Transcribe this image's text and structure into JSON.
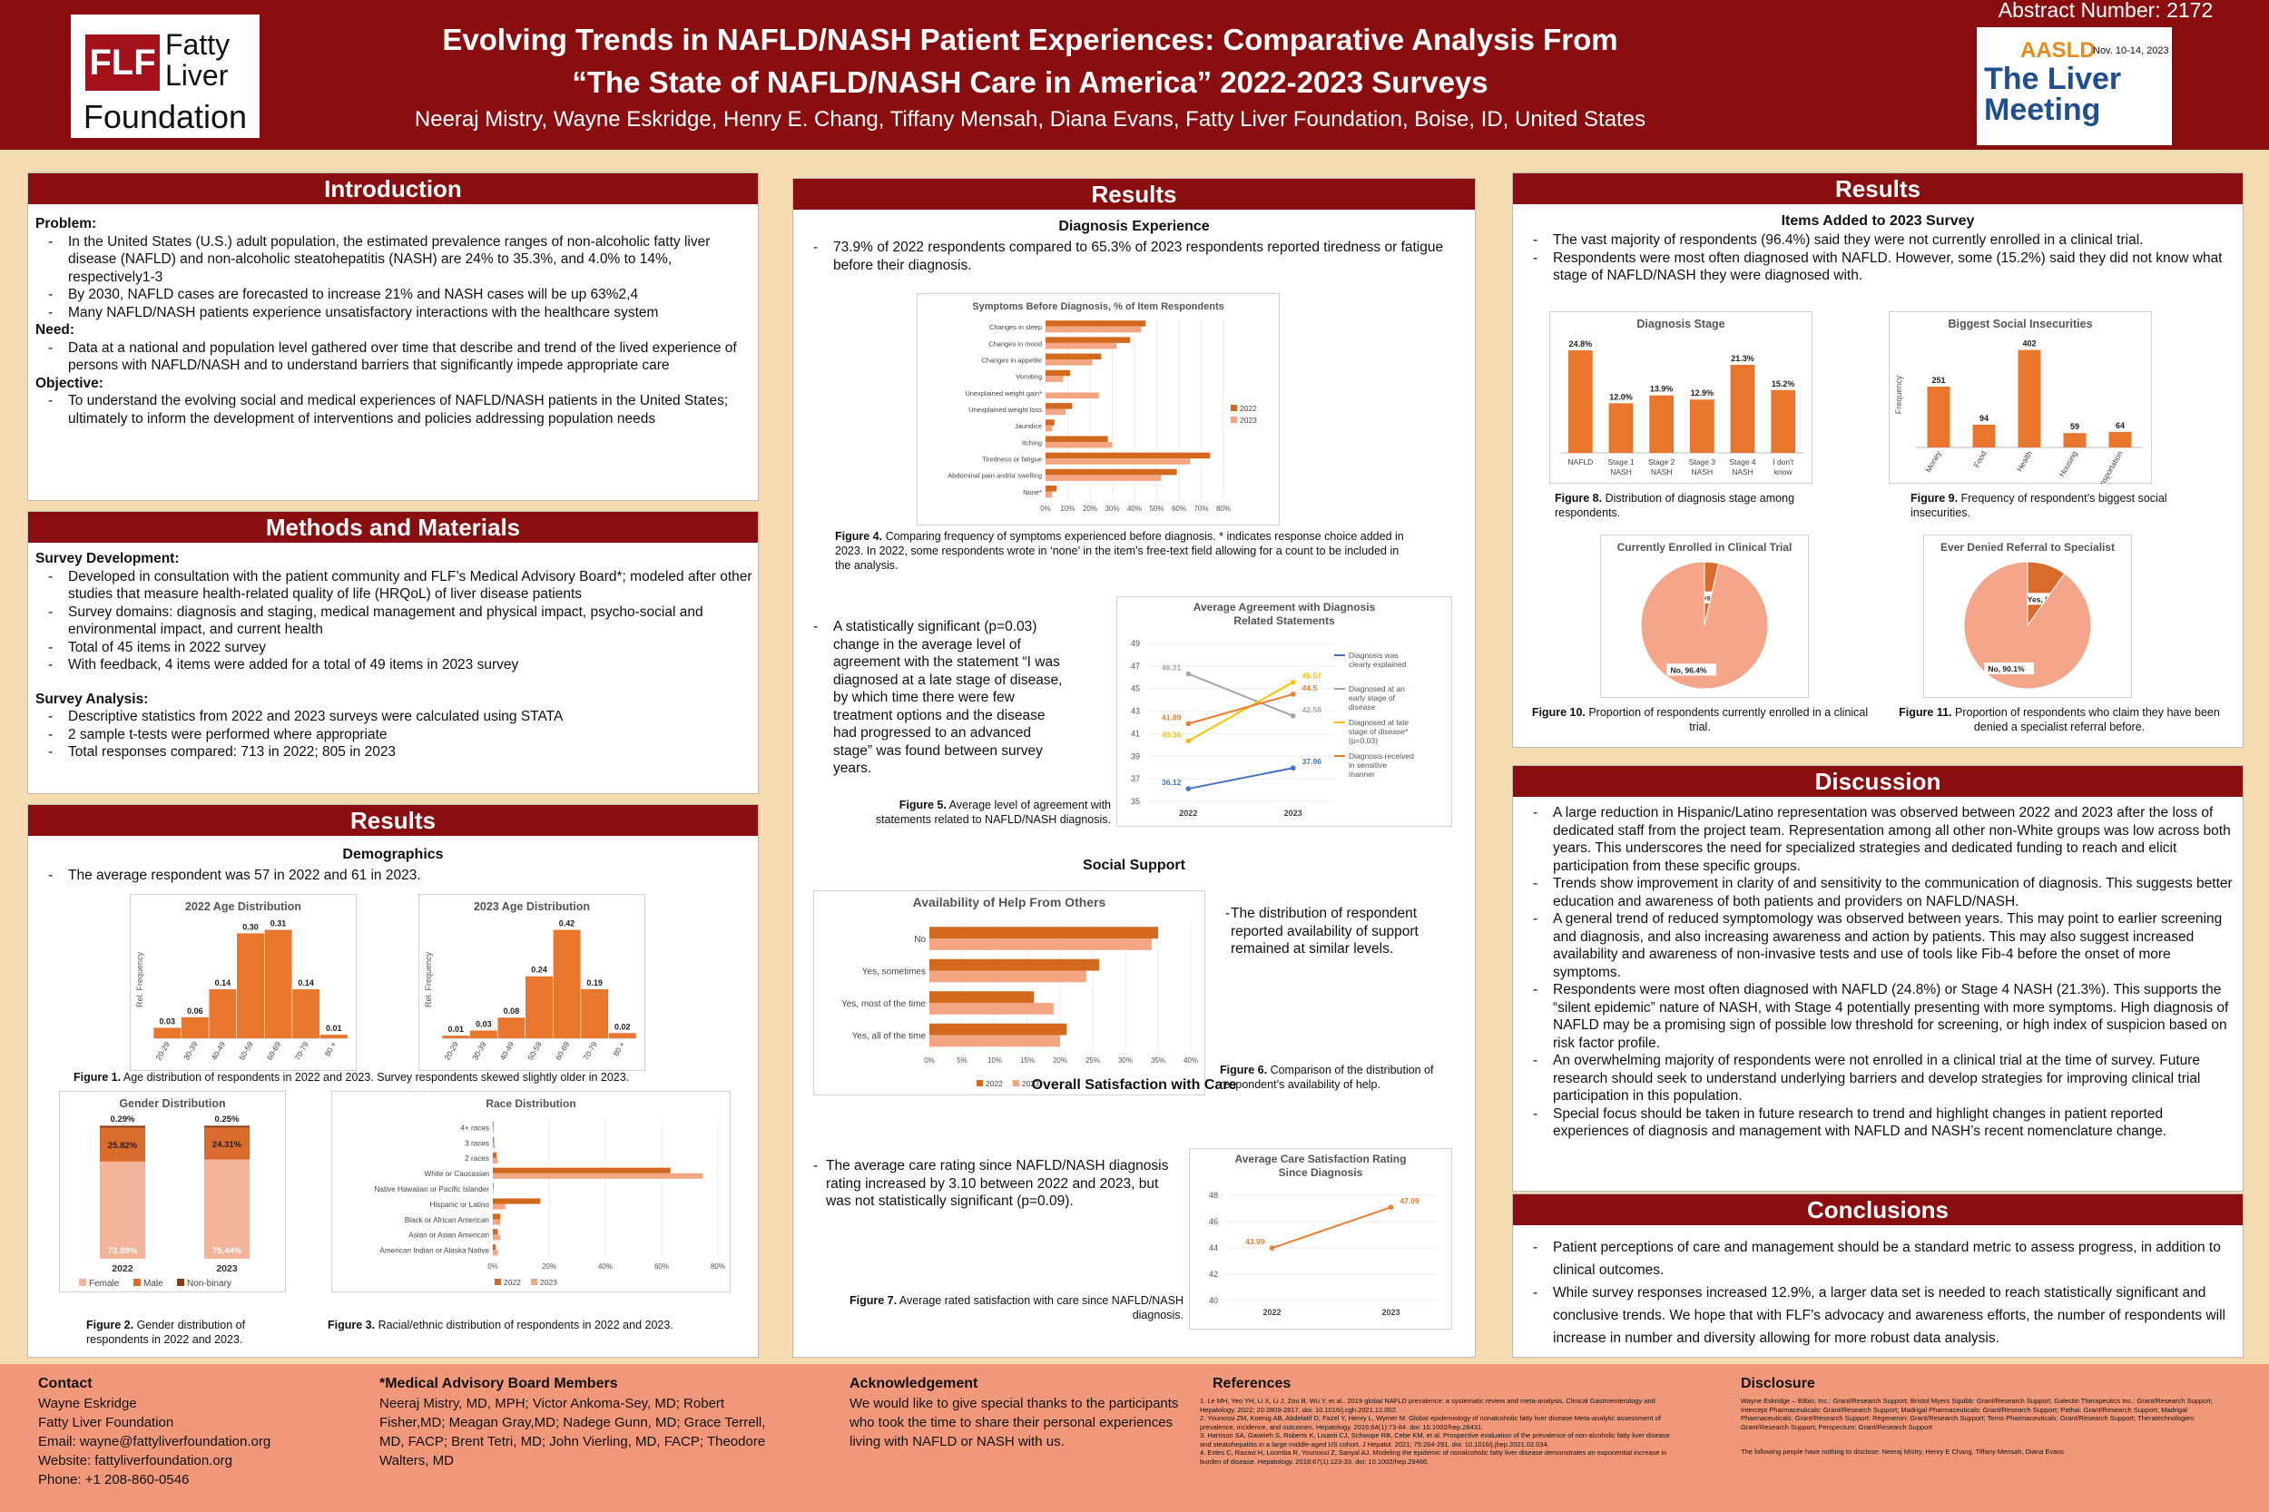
{
  "header": {
    "logo_flf": "FLF",
    "logo_fatty": "Fatty",
    "logo_liver": "Liver",
    "logo_foundation": "Foundation",
    "title_line1": "Evolving Trends in NAFLD/NASH Patient Experiences: Comparative Analysis From",
    "title_line2": "“The State of NAFLD/NASH Care in America” 2022-2023 Surveys",
    "authors": "Neeraj Mistry, Wayne Eskridge, Henry E. Chang, Tiffany Mensah, Diana Evans, Fatty Liver Foundation, Boise, ID, United States",
    "abstract": "Abstract Number: 2172",
    "meeting_org": "AASLD",
    "meeting_dates": "Nov. 10-14, 2023",
    "meeting_name": "The Liver Meeting"
  },
  "intro": {
    "heading": "Introduction",
    "problem_label": "Problem:",
    "problem": [
      "In the United States (U.S.) adult population, the estimated prevalence ranges of non-alcoholic fatty liver disease (NAFLD) and non-alcoholic steatohepatitis (NASH) are 24% to 35.3%, and 4.0% to 14%, respectively1-3",
      "By 2030, NAFLD cases are forecasted to increase 21% and NASH cases will be up 63%2,4",
      "Many NAFLD/NASH patients experience unsatisfactory interactions with the healthcare system"
    ],
    "need_label": "Need:",
    "need": [
      "Data at a national and population level gathered over time that describe and trend of the lived experience of persons with NAFLD/NASH and to understand barriers that significantly impede appropriate care"
    ],
    "objective_label": "Objective:",
    "objective": [
      "To understand the evolving social and medical experiences of NAFLD/NASH patients in the United States; ultimately to inform the development of interventions and policies addressing population needs"
    ]
  },
  "methods": {
    "heading": "Methods and Materials",
    "dev_label": "Survey Development:",
    "dev": [
      "Developed in consultation with the patient community and FLF’s Medical Advisory Board*; modeled after other studies that measure health-related quality of life (HRQoL) of liver disease patients",
      "Survey domains: diagnosis and staging, medical management and physical impact, psycho-social and environmental impact, and current health",
      "Total of 45 items in 2022 survey",
      "With feedback, 4 items were added for a total of 49 items in 2023 survey"
    ],
    "analysis_label": "Survey Analysis:",
    "analysis": [
      "Descriptive statistics from 2022 and 2023 surveys were calculated using STATA",
      "2 sample t-tests were performed where appropriate",
      "Total responses compared: 713 in 2022;  805 in 2023"
    ]
  },
  "results1": {
    "heading": "Results",
    "demographics": "Demographics",
    "demo_text": "The average respondent was 57 in 2022 and  61 in 2023.",
    "fig1_caption_bold": "Figure 1.",
    "fig1_caption": " Age distribution of respondents in 2022 and 2023. Survey respondents skewed slightly older in 2023.",
    "fig2_caption_bold": "Figure 2.",
    "fig2_caption": " Gender distribution of respondents in 2022 and 2023.",
    "fig3_caption_bold": "Figure 3.",
    "fig3_caption": " Racial/ethnic distribution of respondents in 2022 and 2023."
  },
  "results2": {
    "heading": "Results",
    "diag_exp": "Diagnosis Experience",
    "diag_text": "73.9% of 2022 respondents compared to 65.3% of 2023  respondents reported tiredness or fatigue before their diagnosis.",
    "fig4_caption_bold": "Figure 4.",
    "fig4_caption": "  Comparing frequency of symptoms experienced before diagnosis. * indicates response choice added in 2023. In 2022, some respondents wrote in ‘none’ in the item’s free-text field allowing for a count to be included in the analysis.",
    "agree_text": "A statistically significant (p=0.03) change in the average level of agreement with the statement “I was diagnosed at a late stage of disease, by which time there were few treatment options and the disease had progressed to an advanced stage” was found between survey years.",
    "fig5_caption_bold": "Figure 5.",
    "fig5_caption": "  Average level of agreement with statements related to NAFLD/NASH diagnosis.",
    "social": "Social Support",
    "social_text": "The distribution of respondent reported availability of support remained at similar levels.",
    "fig6_caption_bold": "Figure 6.",
    "fig6_caption": "  Comparison of the distribution of respondent’s availability of help.",
    "satisfaction": "Overall Satisfaction with Care",
    "satisfaction_text": "The average care rating since NAFLD/NASH diagnosis rating increased by 3.10 between 2022 and 2023, but was not statistically significant (p=0.09).",
    "fig7_caption_bold": "Figure 7.",
    "fig7_caption": "  Average rated satisfaction with care since NAFLD/NASH diagnosis."
  },
  "results3": {
    "heading": "Results",
    "items_added": "Items Added to 2023 Survey",
    "items": [
      "The vast  majority of respondents (96.4%) said they were not currently enrolled in a clinical trial.",
      "Respondents were most often diagnosed with NAFLD. However, some (15.2%) said they did not know what stage of NAFLD/NASH they were diagnosed with."
    ],
    "fig8_caption_bold": "Figure 8.",
    "fig8_caption": "  Distribution of diagnosis stage among respondents.",
    "fig9_caption_bold": "Figure 9.",
    "fig9_caption": "  Frequency  of respondent’s biggest social insecurities.",
    "fig10_caption_bold": "Figure 10.",
    "fig10_caption": " Proportion of  respondents currently enrolled in  a clinical trial.",
    "fig11_caption_bold": "Figure 11.",
    "fig11_caption": " Proportion of respondents who claim they have been denied a specialist referral before."
  },
  "discussion": {
    "heading": "Discussion",
    "items": [
      "A large reduction in Hispanic/Latino representation was observed between 2022 and 2023 after the loss of dedicated staff from the project team. Representation among all other non-White groups was low across both years. This underscores the need for specialized strategies and dedicated funding to reach and elicit participation from these specific  groups.",
      "Trends show improvement in clarity of and sensitivity to the communication of diagnosis. This suggests better education and awareness of both patients and providers on NAFLD/NASH.",
      "A general trend of reduced symptomology was observed between years. This may point to earlier screening and diagnosis, and also increasing awareness and action by patients. This may also suggest increased availability and awareness of non-invasive tests and use of tools like Fib-4 before the onset of more symptoms.",
      "Respondents were most often diagnosed with NAFLD (24.8%) or Stage 4 NASH (21.3%). This supports the “silent epidemic” nature of NASH, with Stage 4 potentially presenting with more symptoms. High diagnosis of NAFLD may be a promising sign of possible low threshold for screening, or high index of suspicion based on risk factor profile.",
      "An overwhelming majority of respondents were not enrolled in a clinical trial at the time of survey. Future research should  seek to understand underlying barriers and develop strategies for improving clinical trial participation in this population.",
      "Special focus should be taken in future research to  trend and highlight changes in patient reported experiences of  diagnosis and management with NAFLD and NASH’s recent nomenclature change."
    ]
  },
  "conclusions": {
    "heading": "Conclusions",
    "items": [
      "Patient perceptions of care and management should be a standard metric to assess progress, in addition to clinical outcomes.",
      "While survey responses increased 12.9%, a larger data set is needed to reach statistically significant and conclusive trends. We hope that with FLF’s advocacy and awareness efforts, the number of respondents will increase in number and diversity allowing for more robust data analysis."
    ]
  },
  "footer": {
    "contact_h": "Contact",
    "contact": [
      "Wayne Eskridge",
      "Fatty Liver Foundation",
      "Email: wayne@fattyliverfoundation.org",
      "Website: fattyliverfoundation.org",
      "Phone: +1 208-860-0546"
    ],
    "mab_h": "*Medical Advisory Board Members",
    "mab": "Neeraj Mistry, MD, MPH;  Victor Ankoma-Sey, MD; Robert Fisher,MD; Meagan Gray,MD; Nadege Gunn, MD; Grace Terrell, MD, FACP; Brent Tetri, MD; John Vierling, MD, FACP; Theodore Walters, MD",
    "ack_h": "Acknowledgement",
    "ack": "We would like to give special thanks to the participants who took the time to share their personal experiences living with NAFLD or NASH with us.",
    "ref_h": "References",
    "refs": [
      "1.  Le MH, Yeo YH, Li X, Li J, Zou B, Wu Y, et al.. 2019 global NAFLD prevalence: a systematic review and meta-analysis. Clinical Gastroenterology and Hepatology. 2022; 20:2809-2817. doi: 10.1016/j.cgh.2021.12.002.",
      "2.  Younossi ZM, Koenig AB, Abdelatif D, Fazel Y, Henry L, Wymer M. Global epidemiology of nonalcoholic fatty liver disease-Meta-analytic assessment of prevalence, incidence, and outcomes. Hepatology. 2016;64(1):73-84. doi: 10.1002/hep.28431.",
      "3.  Harrison SA, Gawrieh S, Roberts K, Lisanti CJ, Schwope RB, Cebe KM, et al. Prospective evaluation of the prevalence of non-alcoholic fatty liver disease and steatohepatitis in a large middle-aged US cohort. J Hepatol. 2021; 75:284-291. doi: 10.1016/j.jhep.2021.02.034.",
      "4.  Estes C, Razavi H, Loomba R, Younossi Z, Sanyal AJ. Modeling the epidemic of nonalcoholic fatty liver disease demonstrates an exponential increase in burden of disease. Hepatology. 2018;67(1):123-33. doi: 10.1002/hep.29466."
    ],
    "disc_h": "Disclosure",
    "disc": "Wayne Eskridge – 89bio, Inc.: Grant/Research Support; Bristol Myers Squibb: Grant/Research Support; Galectin Therapeutics Inc.: Grant/Research Support; Intercept Pharmaceuticals: Grant/Research Support; Madrigal Pharmaceuticals: Grant/Research Support; Pathai: Grant/Research Support; Madrigal Pharmaceuticals: Grant/Research Support; Regeneron: Grant/Research Support; Terns Pharmaceuticals: Grant/Research Support; Theratechnologies: Grant/Research Support; Perspectum: Grant/Research Support",
    "disc2": "The following people have nothing to disclose: Neeraj Mistry, Henry E Chang, Tiffany Mensah, Diana Evans"
  },
  "chart_data": [
    {
      "type": "bar",
      "title": "2022 Age Distribution",
      "ylabel": "Rel. Frequency",
      "categories": [
        "20-29",
        "30-39",
        "40-49",
        "50-59",
        "60-69",
        "70-79",
        "80 +"
      ],
      "values": [
        0.03,
        0.06,
        0.14,
        0.3,
        0.31,
        0.14,
        0.01
      ],
      "labels": [
        "0.03",
        "0.06",
        "0.14",
        "0.30",
        "0.31",
        "0.14",
        "0.01"
      ]
    },
    {
      "type": "bar",
      "title": "2023 Age Distribution",
      "ylabel": "Rel. Frequency",
      "categories": [
        "20-29",
        "30-39",
        "40-49",
        "50-59",
        "60-69",
        "70-79",
        "80 +"
      ],
      "values": [
        0.01,
        0.03,
        0.08,
        0.24,
        0.42,
        0.19,
        0.02
      ],
      "labels": [
        "0.01",
        "0.03",
        "0.08",
        "0.24",
        "0.42",
        "0.19",
        "0.02"
      ]
    },
    {
      "type": "bar",
      "stacked": true,
      "title": "Gender Distribution",
      "categories": [
        "2022",
        "2023"
      ],
      "series": [
        {
          "name": "Female",
          "values": [
            73.89,
            75.44
          ],
          "labels": [
            "73.89%",
            "75.44%"
          ],
          "color": "#f4b39b"
        },
        {
          "name": "Male",
          "values": [
            25.82,
            24.31
          ],
          "labels": [
            "25.82%",
            "24.31%"
          ],
          "color": "#d96b2c"
        },
        {
          "name": "Non-binary",
          "values": [
            0.29,
            0.25
          ],
          "labels": [
            "0.29%",
            "0.25%"
          ],
          "color": "#8a3a12"
        }
      ]
    },
    {
      "type": "bar",
      "orientation": "horizontal",
      "title": "Race Distribution",
      "categories": [
        "4+ races",
        "3 races",
        "2 races",
        "White or Caucasian",
        "Native Hawaiian or Pacific Islander",
        "Hispanic or Latino",
        "Black or African American",
        "Asian or Asian American",
        "American Indian or Alaska Native"
      ],
      "series": [
        {
          "name": "2022",
          "values": [
            0.3,
            0.5,
            1.5,
            71,
            0.3,
            19,
            3,
            2,
            1.2
          ],
          "color": "#d2691e"
        },
        {
          "name": "2023",
          "values": [
            0.4,
            0.7,
            2,
            84,
            0.3,
            5,
            3,
            3,
            2
          ],
          "color": "#f4a582"
        }
      ],
      "xticks": [
        "0%",
        "20%",
        "40%",
        "60%",
        "80%"
      ],
      "xlim": [
        0,
        90
      ]
    },
    {
      "type": "bar",
      "orientation": "horizontal",
      "title": "Symptoms Before Diagnosis, % of Item Respondents",
      "categories": [
        "Changes in sleep",
        "Changes in mood",
        "Changes in appetite",
        "Vomiting",
        "Unexplained weight gain*",
        "Unexplained weight loss",
        "Jaundice",
        "Itching",
        "Tiredness or fatigue",
        "Abdominal pain and/or swelling",
        "None*"
      ],
      "series": [
        {
          "name": "2022",
          "values": [
            45,
            38,
            25,
            11,
            0,
            12,
            4,
            28,
            74,
            59,
            5
          ],
          "color": "#d2691e"
        },
        {
          "name": "2023",
          "values": [
            43,
            32,
            21,
            8,
            24,
            9,
            3,
            30,
            65,
            52,
            3
          ],
          "color": "#f4a582"
        }
      ],
      "xticks": [
        "0%",
        "10%",
        "20%",
        "30%",
        "40%",
        "50%",
        "60%",
        "70%",
        "80%"
      ],
      "xlim": [
        0,
        80
      ]
    },
    {
      "type": "line",
      "title": "Average Agreement with Diagnosis Related Statements",
      "categories": [
        "2022",
        "2023"
      ],
      "ylim": [
        35,
        49
      ],
      "yticks": [
        "35",
        "37",
        "39",
        "41",
        "43",
        "45",
        "47",
        "49"
      ],
      "series": [
        {
          "name": "Diagnosis was clearly explained",
          "values": [
            36.12,
            37.96
          ],
          "labels": [
            "36.12",
            "37.96"
          ],
          "color": "#4472c4"
        },
        {
          "name": "Diagnosed at an early stage of disease",
          "values": [
            46.31,
            42.58
          ],
          "labels": [
            "46.31",
            "42.58"
          ],
          "color": "#a5a5a5"
        },
        {
          "name": "Diagnosed at late stage of disease* (p=0.03)",
          "values": [
            40.36,
            45.57
          ],
          "labels": [
            "40.36",
            "45.57"
          ],
          "color": "#ffc000"
        },
        {
          "name": "Diagnosis received in sensitive manner",
          "values": [
            41.89,
            44.5
          ],
          "labels": [
            "41.89",
            "44.5"
          ],
          "color": "#ed7d31"
        }
      ]
    },
    {
      "type": "bar",
      "orientation": "horizontal",
      "title": "Availability of Help From Others",
      "categories": [
        "No",
        "Yes, sometimes",
        "Yes, most of the time",
        "Yes, all of the time"
      ],
      "series": [
        {
          "name": "2022",
          "values": [
            35,
            26,
            16,
            21
          ],
          "color": "#d2691e"
        },
        {
          "name": "2023",
          "values": [
            34,
            24,
            19,
            20
          ],
          "color": "#f4a582"
        }
      ],
      "xticks": [
        "0%",
        "5%",
        "10%",
        "15%",
        "20%",
        "25%",
        "30%",
        "35%",
        "40%"
      ],
      "xlim": [
        0,
        40
      ]
    },
    {
      "type": "line",
      "title": "Average Care Satisfaction Rating Since Diagnosis",
      "categories": [
        "2022",
        "2023"
      ],
      "ylim": [
        40,
        48
      ],
      "yticks": [
        "40",
        "42",
        "44",
        "46",
        "48"
      ],
      "series": [
        {
          "name": "",
          "values": [
            43.99,
            47.09
          ],
          "labels": [
            "43.99",
            "47.09"
          ],
          "color": "#ed7d31"
        }
      ]
    },
    {
      "type": "bar",
      "title": "Diagnosis Stage",
      "categories": [
        "NAFLD",
        "Stage 1 NASH",
        "Stage 2 NASH",
        "Stage 3 NASH",
        "Stage 4 NASH",
        "I don't know"
      ],
      "values": [
        24.8,
        12.0,
        13.9,
        12.9,
        21.3,
        15.2
      ],
      "labels": [
        "24.8%",
        "12.0%",
        "13.9%",
        "12.9%",
        "21.3%",
        "15.2%"
      ]
    },
    {
      "type": "bar",
      "title": "Biggest Social Insecurities",
      "ylabel": "Frequency",
      "categories": [
        "Money",
        "Food",
        "Health",
        "Housing",
        "Transportation"
      ],
      "values": [
        251,
        94,
        402,
        59,
        64
      ],
      "labels": [
        "251",
        "94",
        "402",
        "59",
        "64"
      ]
    },
    {
      "type": "pie",
      "title": "Currently Enrolled in Clinical Trial",
      "slices": [
        {
          "name": "Yes",
          "value": 3.6,
          "label": "Yes, 3.6%",
          "color": "#d96b2c"
        },
        {
          "name": "No",
          "value": 96.4,
          "label": "No, 96.4%",
          "color": "#f4a58a"
        }
      ]
    },
    {
      "type": "pie",
      "title": "Ever Denied Referral to Specialist",
      "slices": [
        {
          "name": "Yes",
          "value": 9.9,
          "label": "Yes, 9.9%",
          "color": "#d96b2c"
        },
        {
          "name": "No",
          "value": 90.1,
          "label": "No, 90.1%",
          "color": "#f4a58a"
        }
      ]
    }
  ],
  "colors": {
    "header": "#8a0d10",
    "background": "#f5dcb0",
    "footer": "#f2987a",
    "bar_2022": "#d2691e",
    "bar_2023": "#f4a582"
  }
}
